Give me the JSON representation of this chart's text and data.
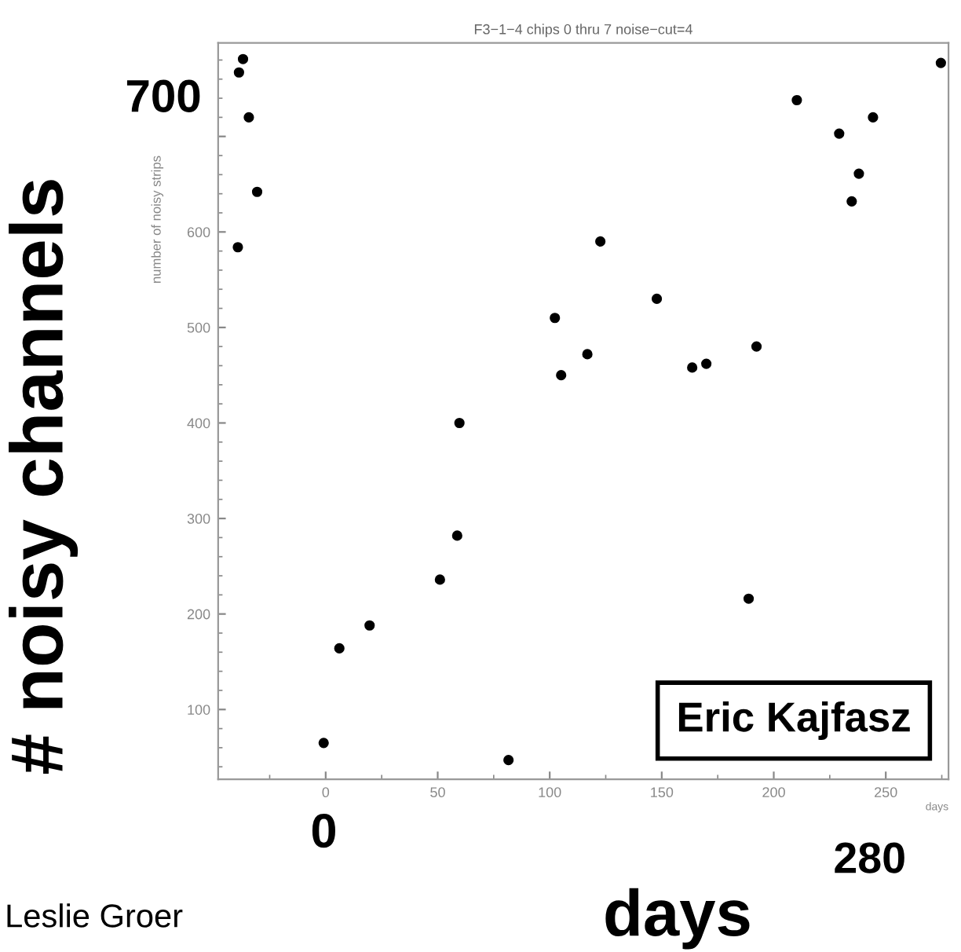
{
  "chart_data": {
    "type": "scatter",
    "title": "F3−1−4 chips 0 thru 7 noise−cut=4",
    "xlabel": "days",
    "ylabel": "number of noisy strips",
    "x": [
      -36.9,
      -38.7,
      -34.3,
      -30.6,
      -39.2,
      59.7,
      274.6,
      210.3,
      244.3,
      229.2,
      238.0,
      234.8,
      122.6,
      147.8,
      102.3,
      116.8,
      105.1,
      163.6,
      169.9,
      192.3,
      58.7,
      51.0,
      19.6,
      6.1,
      -0.9,
      188.8,
      81.6
    ],
    "values": [
      781,
      767,
      720,
      642,
      584,
      400,
      777,
      738,
      720,
      703,
      661,
      632,
      590,
      530,
      510,
      472,
      450,
      458,
      462,
      480,
      282,
      236,
      188,
      164,
      65,
      216,
      47
    ],
    "color": "#000000",
    "marker": "circle",
    "grid": false,
    "legend": false,
    "xlim": [
      -48,
      278
    ],
    "ylim": [
      27,
      798
    ],
    "xticks": [
      0,
      50,
      100,
      150,
      200,
      250
    ],
    "yticks": [
      100,
      200,
      300,
      400,
      500,
      600,
      {
        "value": 700,
        "label": null
      }
    ],
    "annotations": [
      "# noisy channels",
      "700",
      "0",
      "280",
      "days",
      "Eric Kajfasz",
      "Leslie Groer"
    ]
  }
}
